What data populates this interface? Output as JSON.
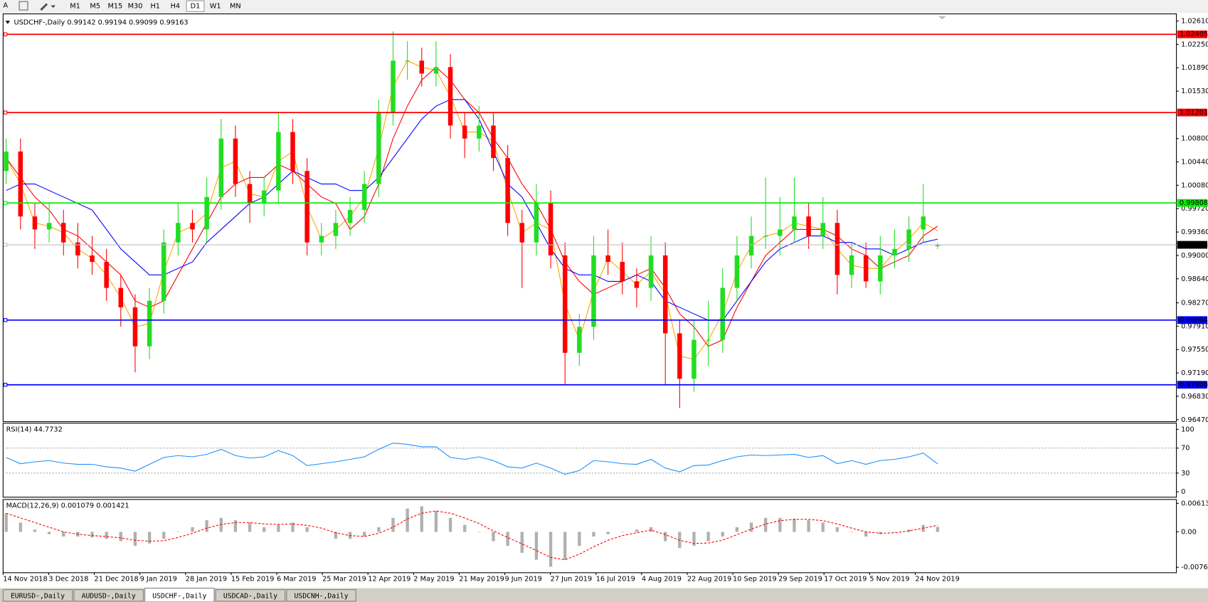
{
  "toolbar": {
    "periods": [
      "M1",
      "M5",
      "M15",
      "M30",
      "H1",
      "H4",
      "D1",
      "W1",
      "MN"
    ],
    "active": "D1"
  },
  "chart_data": [
    {
      "type": "candlestick",
      "title": "USDCHF-,Daily  0.99142 0.99194 0.99099 0.99163",
      "up_color": "#22dd22",
      "down_color": "#ff0000",
      "ylim": [
        0.9644,
        1.0272
      ],
      "yticks": [
        {
          "value": 1.0261,
          "label": "1.02610"
        },
        {
          "value": 1.0225,
          "label": "1.02250"
        },
        {
          "value": 1.0189,
          "label": "1.01890"
        },
        {
          "value": 1.0153,
          "label": "1.01530"
        },
        {
          "value": 1.008,
          "label": "1.00800"
        },
        {
          "value": 1.0044,
          "label": "1.00440"
        },
        {
          "value": 1.0008,
          "label": "1.00080"
        },
        {
          "value": 0.9972,
          "label": "0.99720"
        },
        {
          "value": 0.9936,
          "label": "0.99360"
        },
        {
          "value": 0.99,
          "label": "0.99000"
        },
        {
          "value": 0.9864,
          "label": "0.98640"
        },
        {
          "value": 0.9827,
          "label": "0.98270"
        },
        {
          "value": 0.9791,
          "label": "0.97910"
        },
        {
          "value": 0.9755,
          "label": "0.97550"
        },
        {
          "value": 0.9719,
          "label": "0.97190"
        },
        {
          "value": 0.9683,
          "label": "0.96830"
        },
        {
          "value": 0.9647,
          "label": "0.96470"
        }
      ],
      "levels": [
        {
          "value": 1.02405,
          "color": "#ff0000"
        },
        {
          "value": 1.01201,
          "color": "#ff0000"
        },
        {
          "value": 0.99808,
          "color": "#00ee00"
        },
        {
          "value": 0.98004,
          "color": "#0000ff"
        },
        {
          "value": 0.97008,
          "color": "#0000ff"
        }
      ],
      "current": {
        "value": 0.99163,
        "color": "#c0c0c0"
      },
      "candles": [
        [
          1.003,
          1.008,
          1.001,
          1.006
        ],
        [
          1.006,
          1.008,
          0.994,
          0.996
        ],
        [
          0.996,
          0.998,
          0.991,
          0.994
        ],
        [
          0.994,
          0.998,
          0.992,
          0.995
        ],
        [
          0.995,
          0.997,
          0.99,
          0.992
        ],
        [
          0.992,
          0.995,
          0.988,
          0.99
        ],
        [
          0.99,
          0.993,
          0.987,
          0.989
        ],
        [
          0.989,
          0.991,
          0.983,
          0.985
        ],
        [
          0.985,
          0.987,
          0.979,
          0.982
        ],
        [
          0.982,
          0.984,
          0.972,
          0.976
        ],
        [
          0.976,
          0.985,
          0.974,
          0.983
        ],
        [
          0.983,
          0.994,
          0.981,
          0.992
        ],
        [
          0.992,
          0.998,
          0.99,
          0.995
        ],
        [
          0.995,
          0.997,
          0.992,
          0.994
        ],
        [
          0.994,
          1.002,
          0.992,
          0.999
        ],
        [
          0.999,
          1.011,
          0.997,
          1.008
        ],
        [
          1.008,
          1.01,
          0.999,
          1.001
        ],
        [
          1.001,
          1.003,
          0.995,
          0.998
        ],
        [
          0.998,
          1.002,
          0.996,
          1.0
        ],
        [
          1.0,
          1.012,
          0.998,
          1.009
        ],
        [
          1.009,
          1.011,
          1.001,
          1.003
        ],
        [
          1.003,
          1.005,
          0.99,
          0.992
        ],
        [
          0.992,
          0.995,
          0.99,
          0.993
        ],
        [
          0.993,
          0.997,
          0.991,
          0.995
        ],
        [
          0.995,
          0.999,
          0.993,
          0.997
        ],
        [
          0.997,
          1.003,
          0.995,
          1.001
        ],
        [
          1.001,
          1.014,
          0.999,
          1.012
        ],
        [
          1.012,
          1.0245,
          1.01,
          1.02
        ],
        [
          1.02,
          1.023,
          1.017,
          1.02
        ],
        [
          1.02,
          1.022,
          1.016,
          1.018
        ],
        [
          1.018,
          1.023,
          1.016,
          1.019
        ],
        [
          1.019,
          1.021,
          1.008,
          1.01
        ],
        [
          1.01,
          1.012,
          1.005,
          1.008
        ],
        [
          1.008,
          1.013,
          1.006,
          1.01
        ],
        [
          1.01,
          1.012,
          1.003,
          1.005
        ],
        [
          1.005,
          1.007,
          0.993,
          0.995
        ],
        [
          0.995,
          0.997,
          0.985,
          0.992
        ],
        [
          0.992,
          1.001,
          0.99,
          0.998
        ],
        [
          0.998,
          1.0,
          0.988,
          0.99
        ],
        [
          0.99,
          0.992,
          0.97,
          0.975
        ],
        [
          0.975,
          0.981,
          0.973,
          0.979
        ],
        [
          0.979,
          0.993,
          0.977,
          0.99
        ],
        [
          0.99,
          0.994,
          0.987,
          0.989
        ],
        [
          0.989,
          0.992,
          0.984,
          0.986
        ],
        [
          0.986,
          0.988,
          0.982,
          0.985
        ],
        [
          0.985,
          0.993,
          0.983,
          0.99
        ],
        [
          0.99,
          0.992,
          0.97,
          0.978
        ],
        [
          0.978,
          0.98,
          0.9665,
          0.971
        ],
        [
          0.971,
          0.98,
          0.969,
          0.977
        ],
        [
          0.977,
          0.983,
          0.973,
          0.977
        ],
        [
          0.977,
          0.988,
          0.975,
          0.985
        ],
        [
          0.985,
          0.993,
          0.983,
          0.99
        ],
        [
          0.99,
          0.996,
          0.988,
          0.993
        ],
        [
          0.993,
          1.002,
          0.991,
          0.993
        ],
        [
          0.993,
          0.999,
          0.99,
          0.994
        ],
        [
          0.994,
          1.002,
          0.992,
          0.996
        ],
        [
          0.996,
          0.998,
          0.991,
          0.993
        ],
        [
          0.993,
          0.999,
          0.991,
          0.995
        ],
        [
          0.995,
          0.997,
          0.984,
          0.987
        ],
        [
          0.987,
          0.992,
          0.985,
          0.99
        ],
        [
          0.99,
          0.992,
          0.985,
          0.986
        ],
        [
          0.986,
          0.993,
          0.984,
          0.99
        ],
        [
          0.99,
          0.994,
          0.988,
          0.991
        ],
        [
          0.991,
          0.996,
          0.989,
          0.994
        ],
        [
          0.994,
          1.001,
          0.992,
          0.996
        ],
        [
          0.99142,
          0.99194,
          0.99099,
          0.99163
        ]
      ],
      "series": [
        {
          "color": "#ffa500",
          "values": [
            1.005,
            1.001,
            0.995,
            0.9945,
            0.9935,
            0.991,
            0.9895,
            0.987,
            0.9835,
            0.979,
            0.9795,
            0.9875,
            0.9935,
            0.9945,
            0.9965,
            1.0035,
            1.0045,
            0.9995,
            0.999,
            1.0045,
            1.006,
            0.9975,
            0.9925,
            0.994,
            0.996,
            0.999,
            1.0065,
            1.016,
            1.02,
            1.019,
            1.0185,
            1.0145,
            1.009,
            1.009,
            1.0075,
            1.0,
            0.9935,
            0.995,
            0.994,
            0.9825,
            0.977,
            0.9845,
            0.9895,
            0.9875,
            0.9855,
            0.9875,
            0.984,
            0.9745,
            0.974,
            0.977,
            0.981,
            0.9875,
            0.9915,
            0.993,
            0.9935,
            0.995,
            0.9945,
            0.994,
            0.991,
            0.9885,
            0.988,
            0.988,
            0.9905,
            0.9925,
            0.995,
            0.9938
          ]
        },
        {
          "color": "#ff0000",
          "values": [
            1.005,
            1.002,
            0.999,
            0.997,
            0.994,
            0.993,
            0.991,
            0.989,
            0.987,
            0.983,
            0.982,
            0.983,
            0.987,
            0.991,
            0.995,
            0.999,
            1.001,
            1.002,
            1.002,
            1.004,
            1.003,
            1.001,
            0.999,
            0.998,
            0.994,
            0.996,
            1.001,
            1.008,
            1.013,
            1.017,
            1.019,
            1.017,
            1.014,
            1.012,
            1.008,
            1.005,
            1.001,
            0.998,
            0.994,
            0.989,
            0.986,
            0.984,
            0.985,
            0.986,
            0.987,
            0.988,
            0.985,
            0.981,
            0.979,
            0.976,
            0.977,
            0.982,
            0.986,
            0.99,
            0.992,
            0.994,
            0.994,
            0.994,
            0.993,
            0.991,
            0.99,
            0.988,
            0.989,
            0.99,
            0.993,
            0.9945
          ]
        },
        {
          "color": "#0000ff",
          "values": [
            1.0,
            1.001,
            1.001,
            1.0,
            0.999,
            0.998,
            0.997,
            0.994,
            0.991,
            0.989,
            0.987,
            0.987,
            0.988,
            0.989,
            0.992,
            0.994,
            0.996,
            0.998,
            0.999,
            1.001,
            1.003,
            1.002,
            1.001,
            1.001,
            1.0,
            1.0,
            1.002,
            1.005,
            1.008,
            1.011,
            1.013,
            1.014,
            1.014,
            1.011,
            1.006,
            1.001,
            0.999,
            0.995,
            0.991,
            0.988,
            0.987,
            0.987,
            0.986,
            0.986,
            0.987,
            0.986,
            0.983,
            0.982,
            0.981,
            0.98,
            0.98,
            0.983,
            0.986,
            0.989,
            0.991,
            0.992,
            0.993,
            0.993,
            0.992,
            0.992,
            0.991,
            0.991,
            0.99,
            0.991,
            0.992,
            0.9925
          ]
        }
      ]
    },
    {
      "type": "line",
      "title": "RSI(14) 44.7732",
      "color": "#1e90ff",
      "ylim": [
        -8.6,
        109.9
      ],
      "yticks": [
        100,
        70,
        30,
        0
      ],
      "levels": [
        70,
        30
      ],
      "values": [
        55,
        45,
        48,
        50,
        46,
        44,
        44,
        40,
        38,
        33,
        44,
        55,
        58,
        56,
        60,
        68,
        58,
        54,
        56,
        66,
        58,
        42,
        45,
        48,
        52,
        56,
        68,
        78,
        76,
        72,
        72,
        55,
        52,
        56,
        50,
        40,
        38,
        46,
        38,
        28,
        34,
        50,
        48,
        45,
        44,
        52,
        38,
        32,
        42,
        43,
        50,
        56,
        59,
        58,
        59,
        60,
        55,
        58,
        45,
        50,
        44,
        50,
        52,
        56,
        62,
        44.7732
      ]
    },
    {
      "type": "macd",
      "title": "MACD(12,26,9) 0.001079 0.001421",
      "ylim": [
        -0.00878,
        0.00696
      ],
      "yticks": [
        0.00613,
        {
          "value": 0,
          "label": "0.00"
        },
        -0.007614
      ],
      "histogram": {
        "color": "#b0b0b0",
        "values": [
          0.004,
          0.002,
          0.0005,
          -0.0005,
          -0.001,
          -0.001,
          -0.0012,
          -0.0015,
          -0.002,
          -0.003,
          -0.0025,
          -0.0015,
          0.0,
          0.001,
          0.0025,
          0.003,
          0.0025,
          0.002,
          0.001,
          0.0015,
          0.002,
          0.001,
          0.0,
          -0.0015,
          -0.0015,
          -0.001,
          0.001,
          0.003,
          0.005,
          0.0055,
          0.0045,
          0.003,
          0.0015,
          0.0,
          -0.002,
          -0.003,
          -0.0045,
          -0.006,
          -0.0075,
          -0.006,
          -0.003,
          -0.001,
          -0.0005,
          0.0,
          0.0005,
          0.001,
          -0.002,
          -0.0035,
          -0.003,
          -0.002,
          -0.001,
          0.001,
          0.002,
          0.003,
          0.003,
          0.0028,
          0.0025,
          0.002,
          0.001,
          0.0,
          -0.001,
          -0.0005,
          0.0,
          0.0005,
          0.0015,
          0.001079
        ]
      },
      "signal": {
        "color": "#ff0000",
        "values": [
          0.004,
          0.003,
          0.002,
          0.001,
          0.0,
          -0.0005,
          -0.0008,
          -0.001,
          -0.0013,
          -0.0018,
          -0.002,
          -0.0019,
          -0.0012,
          -0.0003,
          0.0008,
          0.0016,
          0.002,
          0.002,
          0.0017,
          0.0016,
          0.0017,
          0.0014,
          0.0008,
          -0.0002,
          -0.0008,
          -0.001,
          -0.0003,
          0.001,
          0.0028,
          0.004,
          0.0045,
          0.004,
          0.003,
          0.0018,
          0.0002,
          -0.0012,
          -0.0026,
          -0.004,
          -0.0055,
          -0.006,
          -0.0048,
          -0.0032,
          -0.0018,
          -0.0008,
          -0.0002,
          0.0004,
          -0.0006,
          -0.0018,
          -0.0025,
          -0.0024,
          -0.0018,
          -0.0006,
          0.0006,
          0.0017,
          0.0024,
          0.0027,
          0.0027,
          0.0024,
          0.0017,
          0.0008,
          0.0,
          -0.0003,
          -0.0002,
          0.0002,
          0.0008,
          0.001421
        ]
      }
    }
  ],
  "x_labels": [
    "14 Nov 2018",
    "3 Dec 2018",
    "21 Dec 2018",
    "9 Jan 2019",
    "28 Jan 2019",
    "15 Feb 2019",
    "6 Mar 2019",
    "25 Mar 2019",
    "12 Apr 2019",
    "2 May 2019",
    "21 May 2019",
    "9 Jun 2019",
    "27 Jun 2019",
    "16 Jul 2019",
    "4 Aug 2019",
    "22 Aug 2019",
    "10 Sep 2019",
    "29 Sep 2019",
    "17 Oct 2019",
    "5 Nov 2019",
    "24 Nov 2019"
  ],
  "tabs": [
    "EURUSD-,Daily",
    "AUDUSD-,Daily",
    "USDCHF-,Daily",
    "USDCAD-,Daily",
    "USDCNH-,Daily"
  ],
  "active_tab": "USDCHF-,Daily"
}
